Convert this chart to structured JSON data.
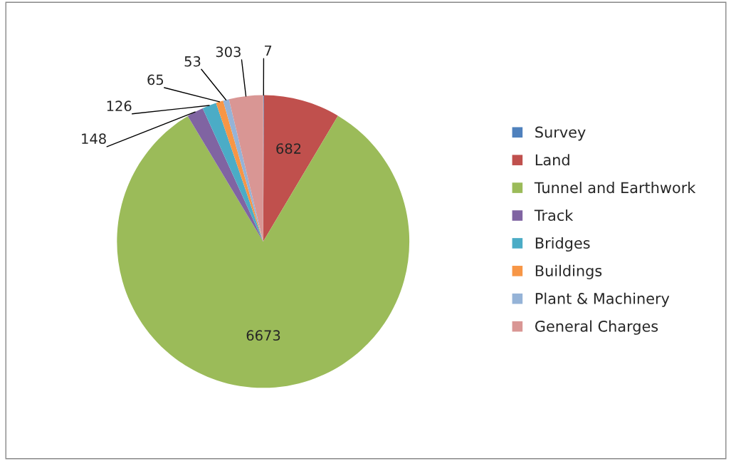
{
  "chart_data": {
    "type": "pie",
    "categories": [
      "Survey",
      "Land",
      "Tunnel and Earthwork",
      "Track",
      "Bridges",
      "Buildings",
      "Plant & Machinery",
      "General Charges"
    ],
    "values": [
      7,
      682,
      6673,
      148,
      126,
      65,
      53,
      303
    ],
    "colors": [
      "#4f81bd",
      "#c0504d",
      "#9bbb59",
      "#8064a2",
      "#4bacc6",
      "#f79646",
      "#95b3d7",
      "#d99694"
    ],
    "data_labels": true,
    "legend": "right"
  }
}
